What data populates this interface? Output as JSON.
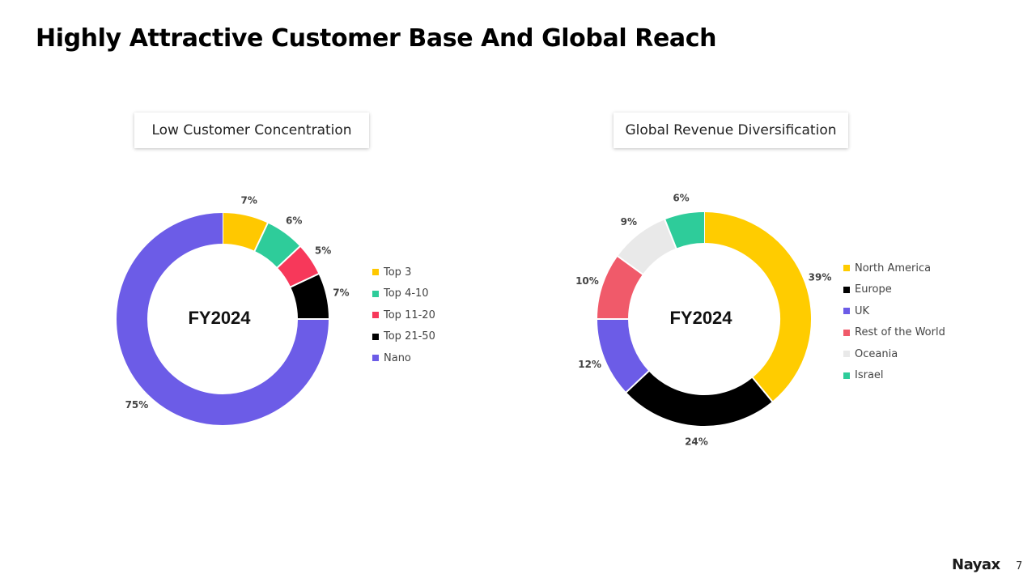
{
  "title": "Highly Attractive Customer Base And Global Reach",
  "footer": {
    "logo_text": "Nayax",
    "page_number": "7"
  },
  "chart_data": [
    {
      "type": "donut",
      "title": "Low Customer Concentration",
      "center_label": "FY2024",
      "legend_position": "right",
      "categories": [
        "Top 3",
        "Top 4-10",
        "Top 11-20",
        "Top 21-50",
        "Nano"
      ],
      "values": [
        7,
        6,
        5,
        7,
        75
      ],
      "labels": [
        "7%",
        "6%",
        "5%",
        "7%",
        "75%"
      ],
      "colors": [
        "#FFC800",
        "#2ECC9A",
        "#F7385A",
        "#000000",
        "#6C5CE7"
      ]
    },
    {
      "type": "donut",
      "title": "Global Revenue Diversification",
      "center_label": "FY2024",
      "legend_position": "right",
      "categories": [
        "North America",
        "Europe",
        "UK",
        "Rest of the World",
        "Oceania",
        "Israel"
      ],
      "values": [
        39,
        24,
        12,
        10,
        9,
        6
      ],
      "labels": [
        "39%",
        "24%",
        "12%",
        "10%",
        "9%",
        "6%"
      ],
      "colors": [
        "#FFCC00",
        "#000000",
        "#6C5CE7",
        "#F05A6A",
        "#E9E9E9",
        "#2ECC9A"
      ]
    }
  ]
}
